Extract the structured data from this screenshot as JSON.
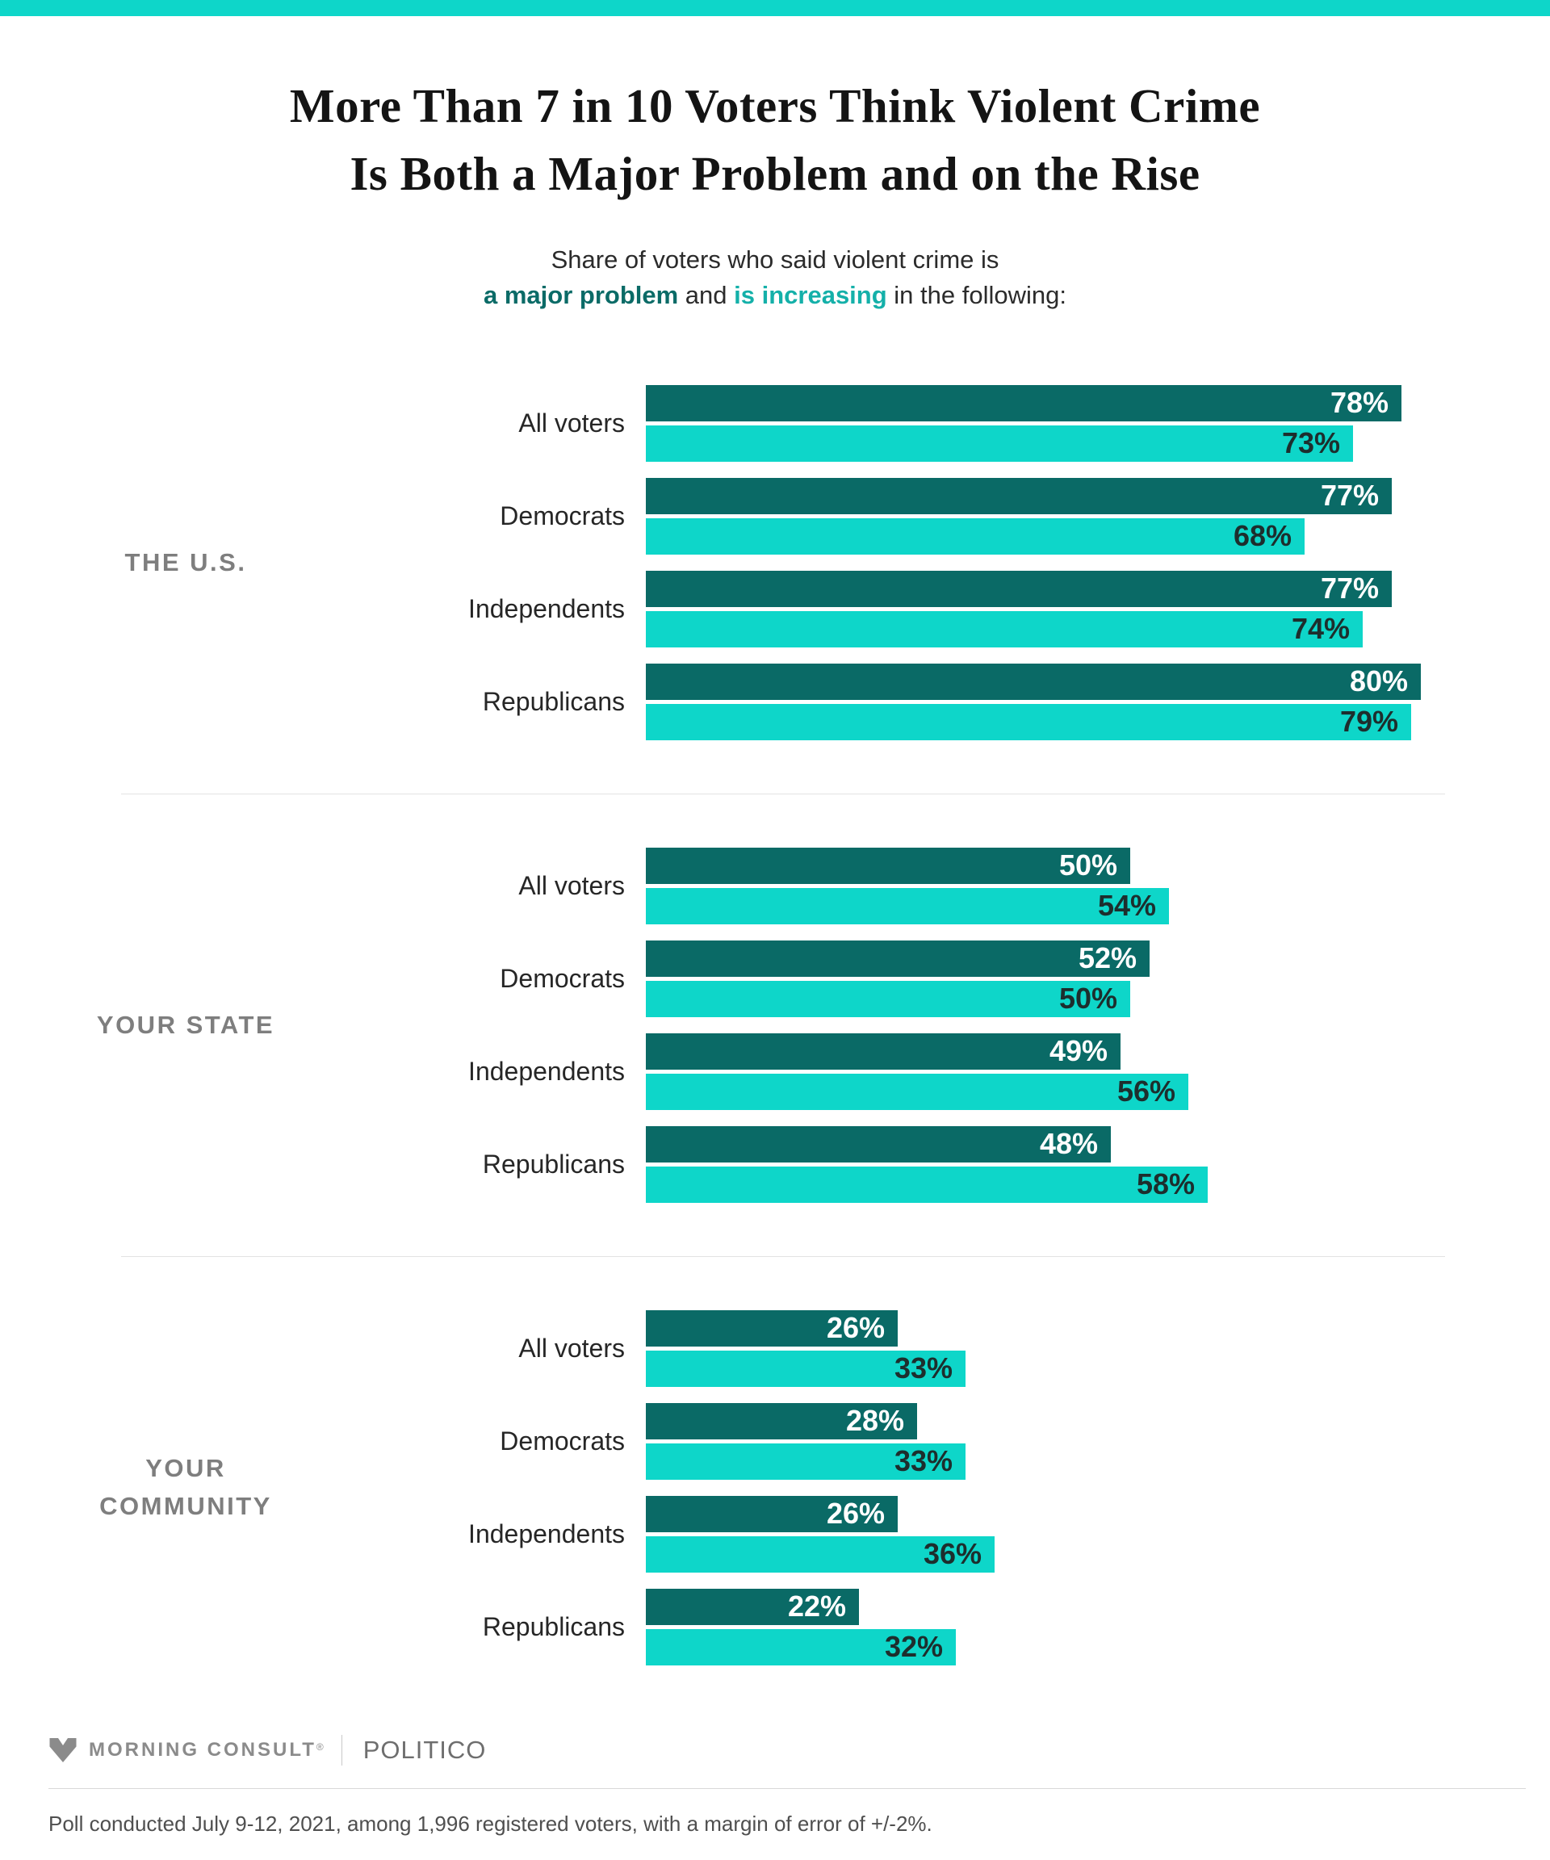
{
  "colors": {
    "accent_bar": "#0ed6c9",
    "series_major_problem": "#0a6a66",
    "series_increasing": "#0ed6c9",
    "subtitle_major_text": "#0b6b67",
    "subtitle_increasing_text": "#14b0a9"
  },
  "title": {
    "line1": "More Than 7 in 10 Voters Think Violent Crime",
    "line2": "Is Both a Major Problem and on the Rise"
  },
  "subtitle": {
    "line1": "Share of voters who said violent crime is",
    "major": "a major problem",
    "mid": " and ",
    "increasing": "is increasing",
    "end": " in the following:"
  },
  "chart_data": {
    "type": "bar",
    "orientation": "horizontal",
    "value_unit": "%",
    "xlim": [
      0,
      100
    ],
    "legend_position": "in-subtitle",
    "series": [
      {
        "name": "a major problem",
        "color": "#0a6a66",
        "label_color": "#ffffff"
      },
      {
        "name": "is increasing",
        "color": "#0ed6c9",
        "label_color": "#1d2e2d"
      }
    ],
    "categories": [
      "All voters",
      "Democrats",
      "Independents",
      "Republicans"
    ],
    "sections": [
      {
        "group": "THE U.S.",
        "rows": [
          {
            "label": "All voters",
            "values": [
              78,
              73
            ]
          },
          {
            "label": "Democrats",
            "values": [
              77,
              68
            ]
          },
          {
            "label": "Independents",
            "values": [
              77,
              74
            ]
          },
          {
            "label": "Republicans",
            "values": [
              80,
              79
            ]
          }
        ]
      },
      {
        "group": "YOUR STATE",
        "rows": [
          {
            "label": "All voters",
            "values": [
              50,
              54
            ]
          },
          {
            "label": "Democrats",
            "values": [
              52,
              50
            ]
          },
          {
            "label": "Independents",
            "values": [
              49,
              56
            ]
          },
          {
            "label": "Republicans",
            "values": [
              48,
              58
            ]
          }
        ]
      },
      {
        "group": "YOUR COMMUNITY",
        "rows": [
          {
            "label": "All voters",
            "values": [
              26,
              33
            ]
          },
          {
            "label": "Democrats",
            "values": [
              28,
              33
            ]
          },
          {
            "label": "Independents",
            "values": [
              26,
              36
            ]
          },
          {
            "label": "Republicans",
            "values": [
              22,
              32
            ]
          }
        ]
      }
    ]
  },
  "footer": {
    "brand1": "MORNING CONSULT",
    "brand1_reg": "®",
    "brand2": "POLITICO"
  },
  "footnote": "Poll conducted July 9-12, 2021, among 1,996 registered voters, with a margin of error of +/-2%."
}
